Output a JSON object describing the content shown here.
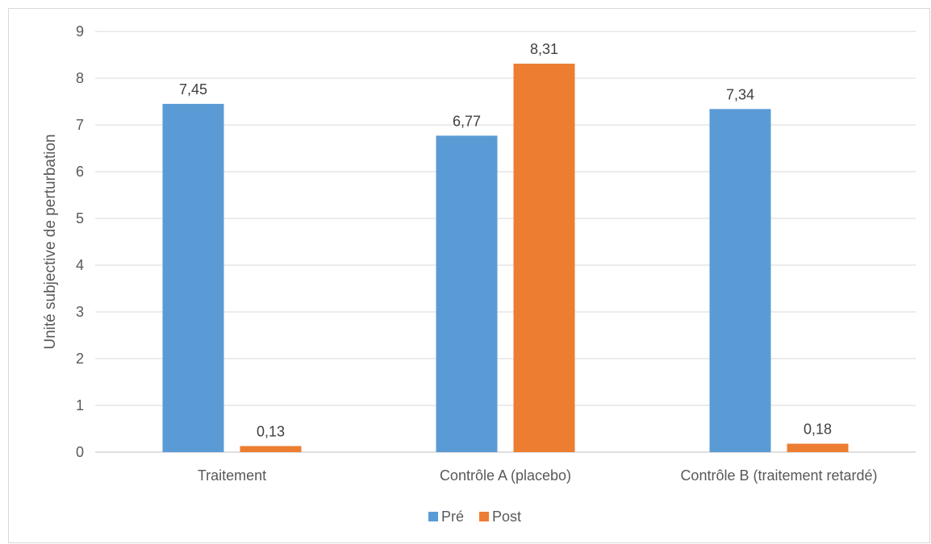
{
  "chart_data": {
    "type": "bar",
    "title": "",
    "xlabel": "",
    "ylabel": "Unité subjective de perturbation",
    "ylim": [
      0,
      9
    ],
    "yticks": [
      0,
      1,
      2,
      3,
      4,
      5,
      6,
      7,
      8,
      9
    ],
    "grid": true,
    "legend_position": "bottom",
    "categories": [
      "Traitement",
      "Contrôle A (placebo)",
      "Contrôle B (traitement retardé)"
    ],
    "series": [
      {
        "name": "Pré",
        "color": "#5b9bd5",
        "values": [
          7.45,
          6.77,
          7.34
        ],
        "labels": [
          "7,45",
          "6,77",
          "7,34"
        ]
      },
      {
        "name": "Post",
        "color": "#ed7d31",
        "values": [
          0.13,
          8.31,
          0.18
        ],
        "labels": [
          "0,13",
          "8,31",
          "0,18"
        ]
      }
    ]
  }
}
